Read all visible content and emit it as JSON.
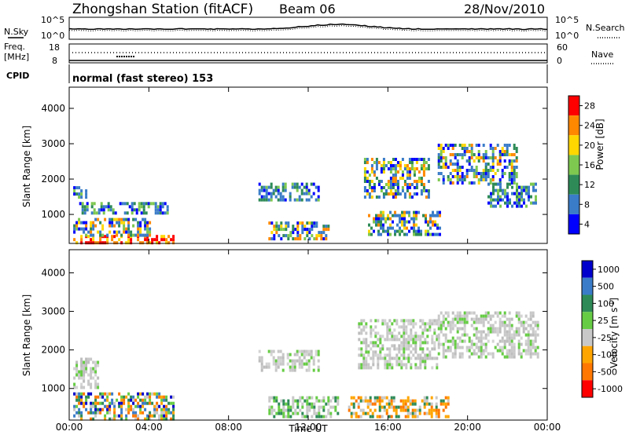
{
  "header": {
    "title": "Zhongshan Station (fitACF)",
    "beam": "Beam 06",
    "date": "28/Nov/2010"
  },
  "nsky_panel": {
    "left_label": "N.Sky",
    "right_label": "N.Search",
    "left_ticks": [
      "10^5",
      "10^0"
    ],
    "right_ticks": [
      "10^5",
      "10^0"
    ]
  },
  "freq_panel": {
    "left_label_line1": "Freq.",
    "left_label_line2": "[MHz]",
    "right_label": "Nave",
    "left_ticks": [
      "18",
      "8"
    ],
    "right_ticks": [
      "60",
      "0"
    ]
  },
  "cpid_panel": {
    "label": "CPID",
    "mode_text": "normal (fast stereo) 153"
  },
  "chart_data": [
    {
      "type": "heatmap",
      "name_from_legend": "Power [dB]",
      "ylabel": "Slant Range [km]",
      "ylim": [
        180,
        4600
      ],
      "yticks": [
        "1000",
        "2000",
        "3000",
        "4000"
      ],
      "xlim": [
        0,
        24
      ],
      "colorbar": {
        "title": "Power [dB]",
        "labels": [
          "28",
          "24",
          "20",
          "16",
          "12",
          "8",
          "4"
        ],
        "colors": [
          "#ff0000",
          "#ff8800",
          "#ffd700",
          "#7ec850",
          "#2e8b57",
          "#3a7cc8",
          "#0000ff"
        ]
      },
      "echo_regions": [
        {
          "t0": 0.2,
          "t1": 5.2,
          "r0": 200,
          "r1": 420,
          "level": "high"
        },
        {
          "t0": 0.2,
          "t1": 4.0,
          "r0": 420,
          "r1": 900,
          "level": "mid"
        },
        {
          "t0": 0.5,
          "t1": 5.0,
          "r0": 1000,
          "r1": 1350,
          "level": "low"
        },
        {
          "t0": 0.2,
          "t1": 0.9,
          "r0": 1500,
          "r1": 1800,
          "level": "low"
        },
        {
          "t0": 9.5,
          "t1": 12.5,
          "r0": 1450,
          "r1": 1900,
          "level": "low"
        },
        {
          "t0": 10.0,
          "t1": 13.0,
          "r0": 300,
          "r1": 800,
          "level": "mid"
        },
        {
          "t0": 14.8,
          "t1": 18.0,
          "r0": 1500,
          "r1": 2600,
          "level": "mid"
        },
        {
          "t0": 15.0,
          "t1": 18.6,
          "r0": 450,
          "r1": 1100,
          "level": "mid"
        },
        {
          "t0": 18.5,
          "t1": 22.5,
          "r0": 1900,
          "r1": 3000,
          "level": "mid"
        },
        {
          "t0": 21.0,
          "t1": 23.4,
          "r0": 1200,
          "r1": 1900,
          "level": "low"
        }
      ]
    },
    {
      "type": "heatmap",
      "name_from_legend": "Velocity [m s^-1]",
      "ylabel": "Slant Range [km]",
      "ylim": [
        180,
        4600
      ],
      "yticks": [
        "1000",
        "2000",
        "3000",
        "4000"
      ],
      "xlabel": "Time UT",
      "xticks": [
        "00:00",
        "04:00",
        "08:00",
        "12:00",
        "16:00",
        "20:00",
        "00:00"
      ],
      "xlim": [
        0,
        24
      ],
      "colorbar": {
        "title": "Velocity",
        "unit": "[m s",
        "unit_exp": "-1",
        "unit_close": "]",
        "labels": [
          "1000",
          "500",
          "100",
          "25",
          "-25",
          "-100",
          "-500",
          "-1000"
        ],
        "colors": [
          "#0000cc",
          "#3a7cc8",
          "#2e8b57",
          "#66cc44",
          "#c8c8c8",
          "#ffa500",
          "#ff7700",
          "#ff0000"
        ]
      },
      "echo_regions": [
        {
          "t0": 0.2,
          "t1": 5.2,
          "r0": 200,
          "r1": 900,
          "level": "mixed"
        },
        {
          "t0": 0.2,
          "t1": 1.5,
          "r0": 1000,
          "r1": 1800,
          "level": "gray"
        },
        {
          "t0": 9.5,
          "t1": 12.5,
          "r0": 1450,
          "r1": 2000,
          "level": "gray"
        },
        {
          "t0": 10.0,
          "t1": 13.5,
          "r0": 300,
          "r1": 800,
          "level": "green"
        },
        {
          "t0": 14.0,
          "t1": 19.0,
          "r0": 300,
          "r1": 800,
          "level": "orange"
        },
        {
          "t0": 14.5,
          "t1": 18.5,
          "r0": 1500,
          "r1": 2800,
          "level": "gray"
        },
        {
          "t0": 18.5,
          "t1": 23.5,
          "r0": 1800,
          "r1": 3000,
          "level": "gray"
        }
      ]
    }
  ]
}
